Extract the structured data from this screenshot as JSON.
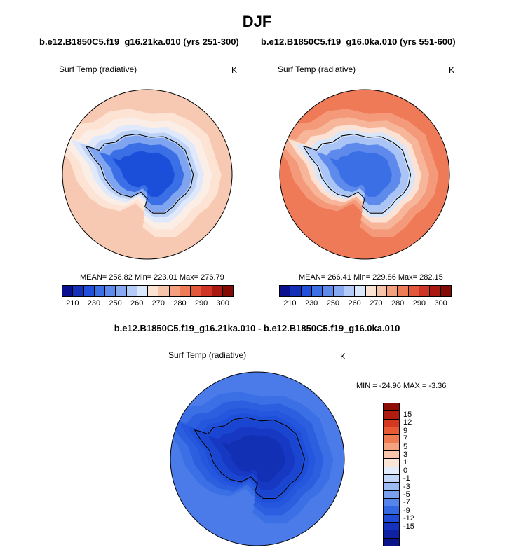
{
  "title": "DJF",
  "variable": "Surf Temp (radiative)",
  "unit": "K",
  "panels": [
    {
      "case": "b.e12.B1850C5.f19_g16.21ka.010 (yrs 251-300)",
      "stats": "MEAN= 258.82  Min= 223.01  Max= 276.79",
      "ring_colors": [
        "#f8c9b2",
        "#fde3d4",
        "#fbeee6",
        "#dfe9fb",
        "#bcd2f7",
        "#7fa4f0",
        "#3a6fe6",
        "#1c4fd9"
      ]
    },
    {
      "case": "b.e12.B1850C5.f19_g16.0ka.010 (yrs 551-600)",
      "stats": "MEAN= 266.41  Min= 229.86  Max= 282.15",
      "ring_colors": [
        "#ef7a57",
        "#f49a7a",
        "#f7b69a",
        "#fce2d4",
        "#d8e6fb",
        "#a9c4f5",
        "#5d8aeb",
        "#3a6fe6"
      ]
    }
  ],
  "abs_colorbar": {
    "colors": [
      "#0a0f8f",
      "#1530b8",
      "#1f4fdb",
      "#3a6fe6",
      "#5d8aeb",
      "#86a9f1",
      "#b3cbf6",
      "#dbe7fb",
      "#fbe3d3",
      "#f8c4a9",
      "#f4a07e",
      "#ee7c56",
      "#e3573a",
      "#cf3527",
      "#a9190f",
      "#840a05"
    ],
    "tick_labels": [
      "210",
      "230",
      "250",
      "260",
      "270",
      "280",
      "290",
      "300"
    ]
  },
  "diff": {
    "title": "b.e12.B1850C5.f19_g16.21ka.010 - b.e12.B1850C5.f19_g16.0ka.010",
    "minmax": "MIN = -24.96 MAX =  -3.36",
    "ring_colors": [
      "#4a7be8",
      "#3a6fe6",
      "#2c5fe0",
      "#2457dd",
      "#1e4fd9",
      "#1a45d0",
      "#1638c2",
      "#1230b4"
    ]
  },
  "diff_colorbar": {
    "colors": [
      "#8e0d05",
      "#b01d10",
      "#d4391f",
      "#e85a33",
      "#f07a4f",
      "#f5a27e",
      "#f9c6ab",
      "#fbe5d7",
      "#e3ecfb",
      "#c2d6f8",
      "#9dbcf4",
      "#7aa1ef",
      "#5584ea",
      "#3468e2",
      "#1f4bd6",
      "#1633bf",
      "#0f22a3",
      "#09148a"
    ],
    "tick_labels": [
      "15",
      "12",
      "9",
      "7",
      "5",
      "3",
      "1",
      "0",
      "-1",
      "-3",
      "-5",
      "-7",
      "-9",
      "-12",
      "-15"
    ]
  }
}
